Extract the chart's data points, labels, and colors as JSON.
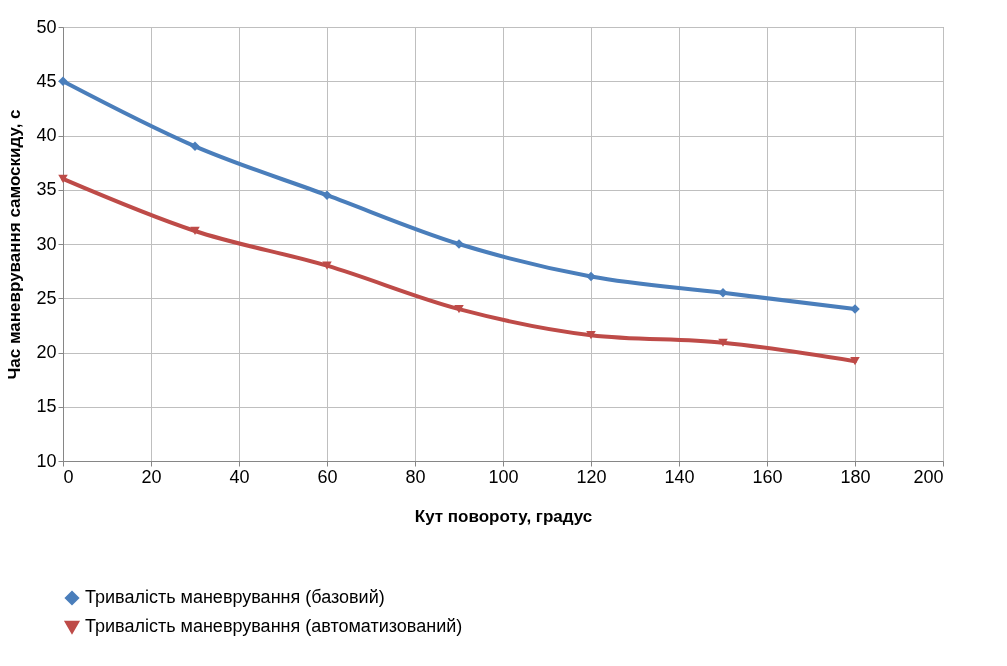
{
  "chart_data": {
    "type": "line",
    "xlabel": "Кут повороту, градус",
    "ylabel": "Час маневрування самоскиду, с",
    "x": [
      0,
      30,
      60,
      90,
      120,
      150,
      180
    ],
    "series": [
      {
        "name": "Тривалість маневрування (базовий)",
        "color": "#4a7ebb",
        "marker": "diamond",
        "values": [
          45,
          39,
          34.5,
          30,
          27,
          25.5,
          24
        ]
      },
      {
        "name": "Тривалість маневрування (автоматизований)",
        "color": "#be4b48",
        "marker": "triangle",
        "values": [
          36,
          31.2,
          28,
          24,
          21.6,
          20.9,
          19.2
        ]
      }
    ],
    "xlim": [
      0,
      200
    ],
    "xticks": [
      0,
      20,
      40,
      60,
      80,
      100,
      120,
      140,
      160,
      180,
      200
    ],
    "ylim": [
      10,
      50
    ],
    "yticks": [
      10,
      15,
      20,
      25,
      30,
      35,
      40,
      45,
      50
    ],
    "grid": true,
    "legend": "bottom",
    "line_style": "solid"
  }
}
